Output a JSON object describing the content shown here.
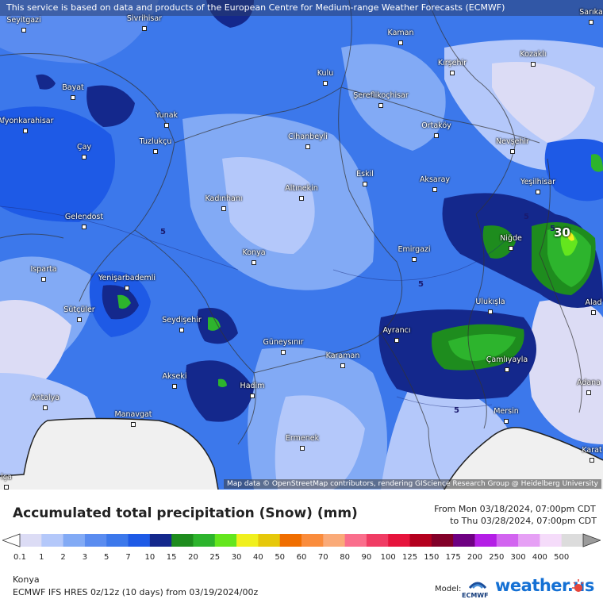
{
  "banner": "This service is based on data and products of the European Centre for Medium-range Weather Forecasts (ECMWF)",
  "attribution": "Map data © OpenStreetMap contributors, rendering GIScience Research Group @ Heidelberg University",
  "cities": [
    {
      "name": "Seyitgazi"
    },
    {
      "name": "Sivrihisar"
    },
    {
      "name": "Kaman"
    },
    {
      "name": "Sarıka"
    },
    {
      "name": "Kırşehir"
    },
    {
      "name": "Kozaklı"
    },
    {
      "name": "Kulu"
    },
    {
      "name": "Bayat"
    },
    {
      "name": "Şereflikoçhisar"
    },
    {
      "name": "Afyonkarahisar"
    },
    {
      "name": "Yunak"
    },
    {
      "name": "Ortaköy"
    },
    {
      "name": "Cihanbeyli"
    },
    {
      "name": "Nevşehir"
    },
    {
      "name": "Çay"
    },
    {
      "name": "Tuzlukçu"
    },
    {
      "name": "Eskil"
    },
    {
      "name": "Aksaray"
    },
    {
      "name": "Yeşilhisar"
    },
    {
      "name": "Altınekin"
    },
    {
      "name": "Kadınhanı"
    },
    {
      "name": "Gelendost"
    },
    {
      "name": "Niğde"
    },
    {
      "name": "Emirgazi"
    },
    {
      "name": "Konya"
    },
    {
      "name": "Isparta"
    },
    {
      "name": "Yenişarbademli"
    },
    {
      "name": "Ulukışla"
    },
    {
      "name": "Alad"
    },
    {
      "name": "Sütçüler"
    },
    {
      "name": "Seydişehir"
    },
    {
      "name": "Ayrancı"
    },
    {
      "name": "Güneysınır"
    },
    {
      "name": "Karaman"
    },
    {
      "name": "Çamlıyayla"
    },
    {
      "name": "Akseki"
    },
    {
      "name": "Adana"
    },
    {
      "name": "Hadim"
    },
    {
      "name": "Antalya"
    },
    {
      "name": "Manavgat"
    },
    {
      "name": "Mersin"
    },
    {
      "name": "Ermenek"
    },
    {
      "name": "Karat"
    },
    {
      "name": "lça"
    }
  ],
  "contour_labels": [
    "5",
    "5",
    "5",
    "5",
    "5"
  ],
  "max_label": "30",
  "legend": {
    "title": "Accumulated total precipitation (Snow) (mm)",
    "from": "From Mon 03/18/2024, 07:00pm CDT",
    "to": "to Thu 03/28/2024, 07:00pm CDT",
    "ticks": [
      "0.1",
      "1",
      "2",
      "3",
      "5",
      "7",
      "10",
      "15",
      "20",
      "25",
      "30",
      "40",
      "50",
      "60",
      "70",
      "80",
      "90",
      "100",
      "125",
      "150",
      "175",
      "200",
      "250",
      "300",
      "400",
      "500"
    ],
    "colors": [
      "#dcdcf5",
      "#b4c8fa",
      "#82aaf5",
      "#5a8cf0",
      "#3c78eb",
      "#1e5ae6",
      "#14288c",
      "#1e8c1e",
      "#2db42d",
      "#64e61e",
      "#f0f01e",
      "#e6c80a",
      "#f06e00",
      "#fa8c3c",
      "#faaa78",
      "#fa6e8c",
      "#f03c64",
      "#e6143c",
      "#b4001e",
      "#820028",
      "#6e0082",
      "#b41ee6",
      "#d264f0",
      "#e6a0f5",
      "#f5dcfa",
      "#dcdcdc"
    ]
  },
  "location": "Konya",
  "model": "ECMWF IFS HRES 0z/12z (10 days) from  03/19/2024/00z",
  "model_label": "Model:",
  "ecmwf_logo_text": "ECMWF",
  "brand": "weather.us"
}
